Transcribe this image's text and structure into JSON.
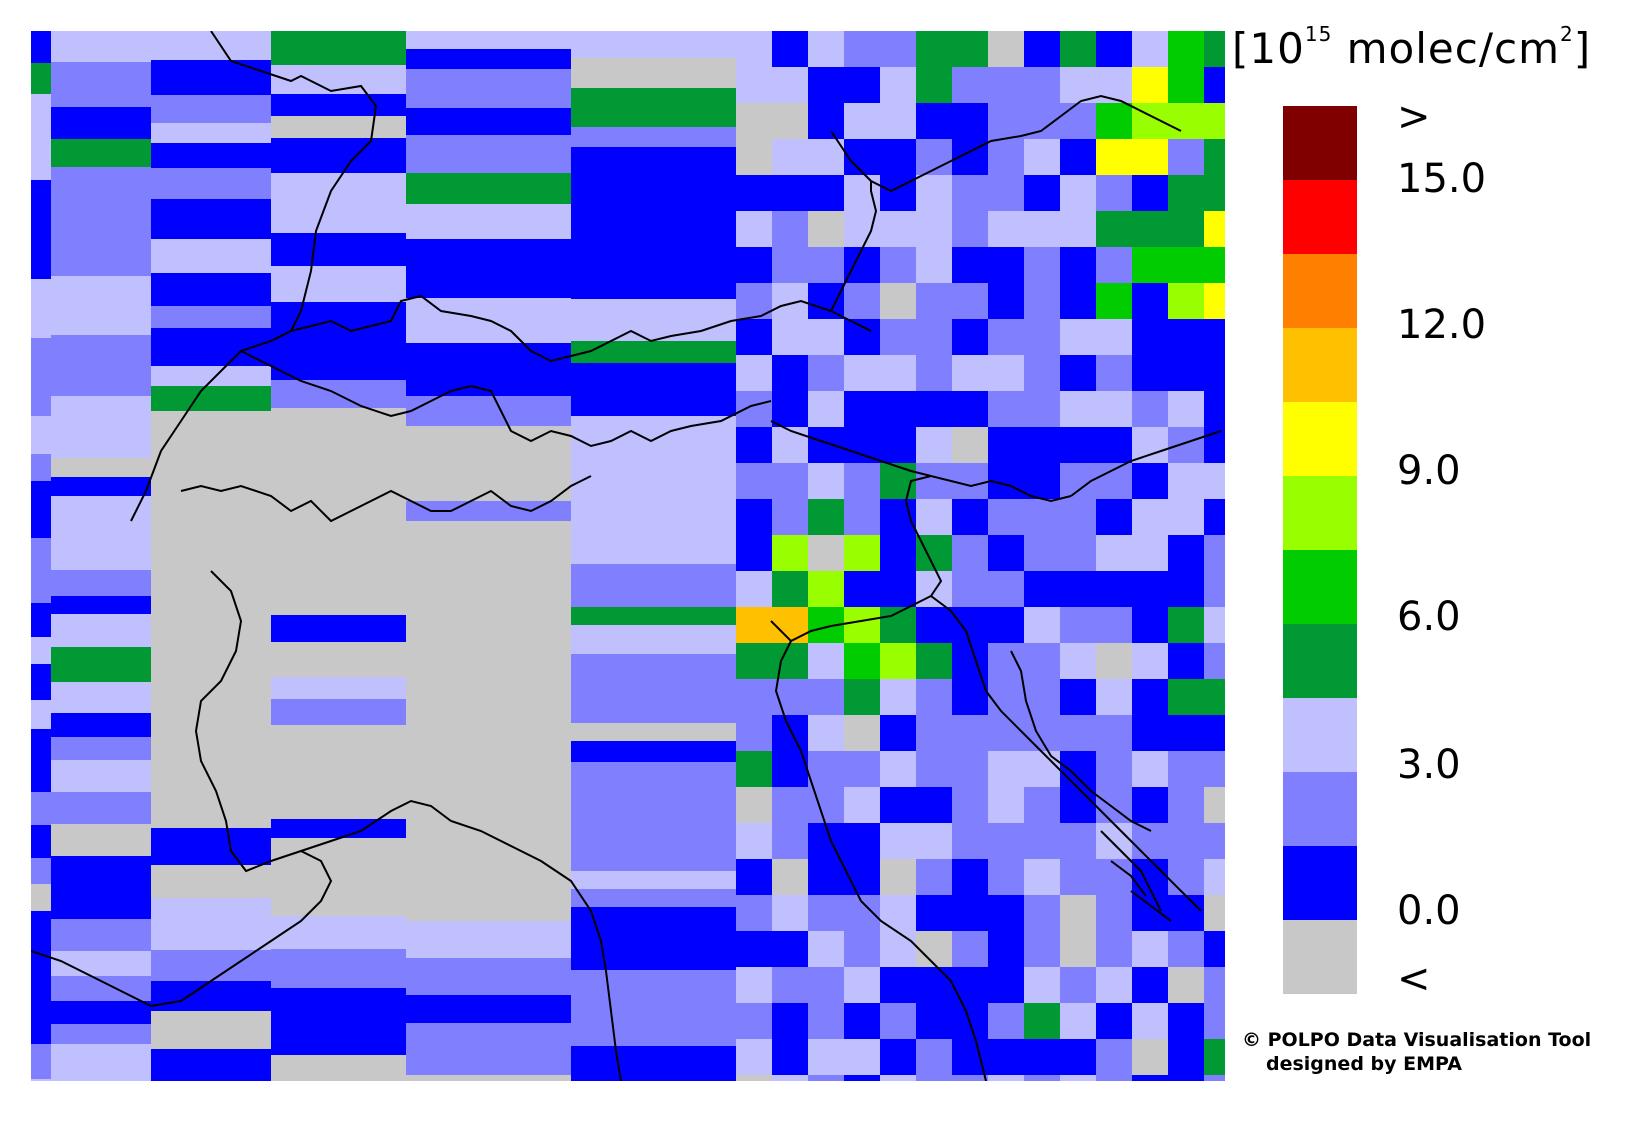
{
  "legend": {
    "unit_prefix": "[10",
    "unit_exp": "15",
    "unit_suffix": " molec/cm",
    "unit_sq": "2",
    "unit_close": "]",
    "labels": [
      ">",
      "15.0",
      "12.0",
      "9.0",
      "6.0",
      "3.0",
      "0.0",
      "<"
    ],
    "colors": [
      "#800000",
      "#ff0000",
      "#ff8000",
      "#ffc000",
      "#ffff00",
      "#99ff00",
      "#00cc00",
      "#009933",
      "#c0c0ff",
      "#8080ff",
      "#0000ff",
      "#c8c8c8"
    ]
  },
  "credit": {
    "line1": "© POLPO Data Visualisation Tool",
    "line2": "designed by EMPA"
  },
  "map": {
    "gap_color": "#c8c8c8",
    "coast_color": "#000000"
  }
}
